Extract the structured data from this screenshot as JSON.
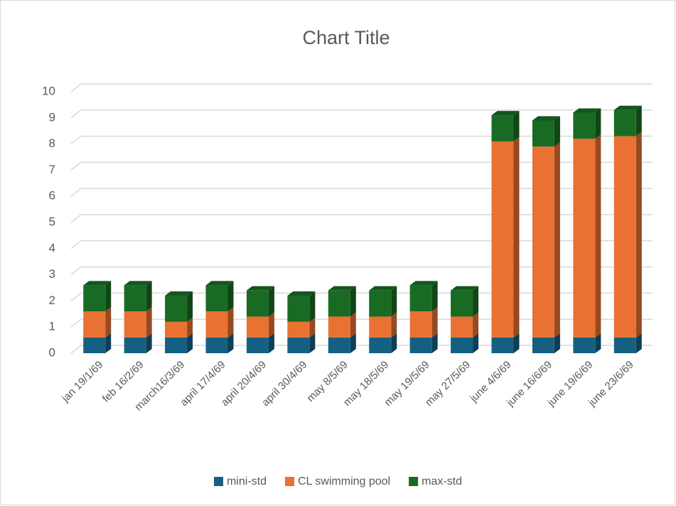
{
  "chart_data": {
    "type": "bar3d_stacked",
    "title": "Chart Title",
    "categories": [
      "jan 19/1/69",
      "feb 16/2/69",
      "march16/3/69",
      "april 17/4/69",
      "april 20/4/69",
      "april 30/4/69",
      "may 8/5/69",
      "may 18/5/69",
      "may 19/5/69",
      "may 27/5/69",
      "june 4/6/69",
      "june 16/6/69",
      "june 19/6/69",
      "june 23/6/69"
    ],
    "series": [
      {
        "name": "mini-std",
        "color": "#156082",
        "values": [
          0.6,
          0.6,
          0.6,
          0.6,
          0.6,
          0.6,
          0.6,
          0.6,
          0.6,
          0.6,
          0.6,
          0.6,
          0.6,
          0.6
        ]
      },
      {
        "name": "CL swimming pool",
        "color": "#e97132",
        "values": [
          1.0,
          1.0,
          0.6,
          1.0,
          0.8,
          0.6,
          0.8,
          0.8,
          1.0,
          0.8,
          7.5,
          7.3,
          7.6,
          7.7
        ]
      },
      {
        "name": "max-std",
        "color": "#196b24",
        "values": [
          1.0,
          1.0,
          1.0,
          1.0,
          1.0,
          1.0,
          1.0,
          1.0,
          1.0,
          1.0,
          1.0,
          1.0,
          1.0,
          1.0
        ]
      }
    ],
    "ylim": [
      0,
      10
    ],
    "yticks": [
      0,
      1,
      2,
      3,
      4,
      5,
      6,
      7,
      8,
      9,
      10
    ],
    "grid": true,
    "legend": "bottom"
  }
}
